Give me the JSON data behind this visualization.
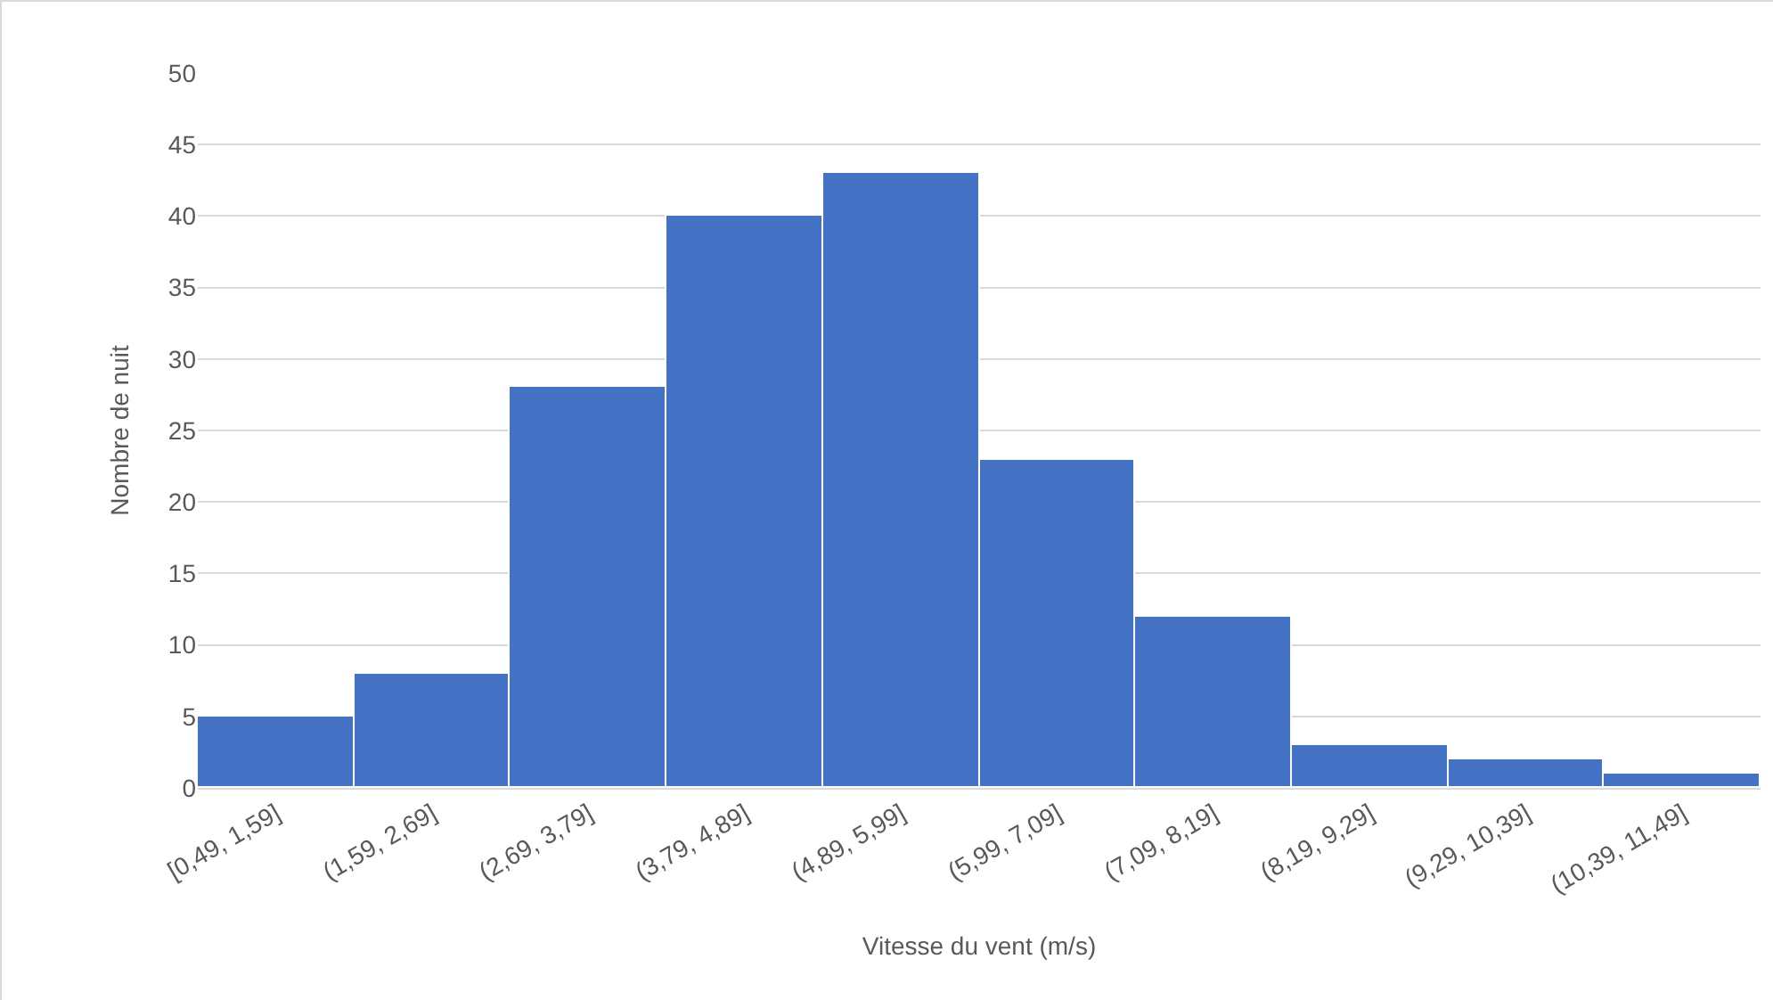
{
  "chart_data": {
    "type": "bar",
    "categories": [
      "[0,49, 1,59]",
      "(1,59, 2,69]",
      "(2,69, 3,79]",
      "(3,79, 4,89]",
      "(4,89, 5,99]",
      "(5,99, 7,09]",
      "(7,09, 8,19]",
      "(8,19, 9,29]",
      "(9,29, 10,39]",
      "(10,39, 11,49]"
    ],
    "values": [
      5,
      8,
      28,
      40,
      43,
      23,
      12,
      3,
      2,
      1
    ],
    "color": "#4472c4",
    "xlabel": "Vitesse du vent (m/s)",
    "ylabel": "Nombre de nuit",
    "ylim": [
      0,
      50
    ],
    "yticks": [
      0,
      5,
      10,
      15,
      20,
      25,
      30,
      35,
      40,
      45,
      50
    ],
    "grid": "y"
  }
}
